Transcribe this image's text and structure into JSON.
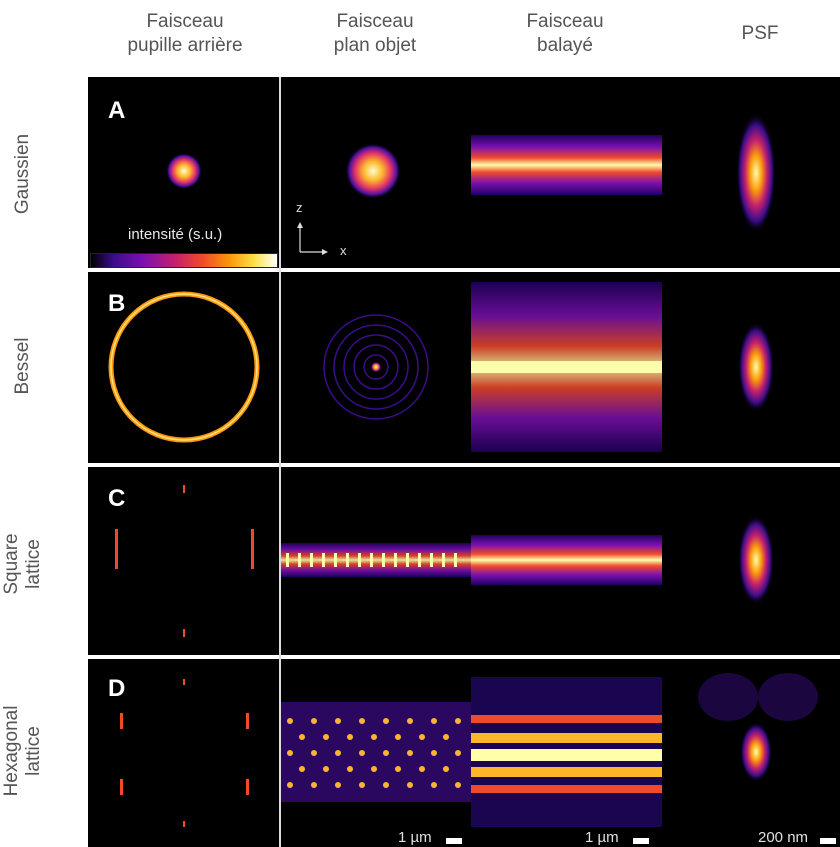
{
  "columns": [
    {
      "label": "Faisceau\npupille arrière"
    },
    {
      "label": "Faisceau\nplan objet"
    },
    {
      "label": "Faisceau\nbalayé"
    },
    {
      "label": "PSF"
    }
  ],
  "rows": [
    {
      "letter": "A",
      "label": "Gaussien"
    },
    {
      "letter": "B",
      "label": "Bessel"
    },
    {
      "letter": "C",
      "label": "Square\nlattice"
    },
    {
      "letter": "D",
      "label": "Hexagonal\nlattice"
    }
  ],
  "colorbar": {
    "label": "intensité (s.u.)"
  },
  "axes": {
    "z": "z",
    "x": "x"
  },
  "scalebars": {
    "col2": "1 µm",
    "col3": "1 µm",
    "col4": "200 nm"
  },
  "colors": {
    "background": "#000000",
    "hot": "#ffffaa",
    "mid": "#f04a2a",
    "low": "#5a0fa0"
  }
}
